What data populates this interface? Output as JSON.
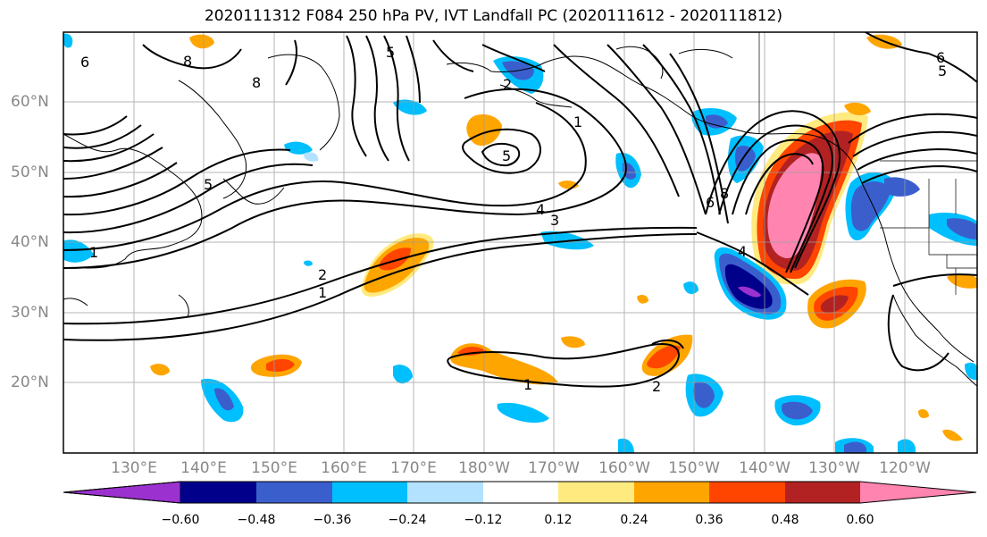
{
  "title": "2020111312 F084 250 hPa PV, IVT Landfall PC (2020111612 - 2020111812)",
  "lat_labels": [
    "60°N",
    "50°N",
    "40°N",
    "30°N",
    "20°N"
  ],
  "lon_labels": [
    "130°E",
    "140°E",
    "150°E",
    "160°E",
    "170°E",
    "180°W",
    "170°W",
    "160°W",
    "150°W",
    "140°W",
    "130°W",
    "120°W"
  ],
  "colorbar": {
    "ticks": [
      "−0.60",
      "−0.48",
      "−0.36",
      "−0.24",
      "−0.12",
      "0.12",
      "0.24",
      "0.36",
      "0.48",
      "0.60"
    ],
    "colors": [
      "#9b32d0",
      "#00008b",
      "#3a5fcd",
      "#00bfff",
      "#b2e2ff",
      "#ffffff",
      "#ffea80",
      "#ffa500",
      "#ff4500",
      "#b22222",
      "#ff85b0"
    ]
  },
  "pv_contour_labels": [
    "1",
    "2",
    "3",
    "4",
    "5",
    "6",
    "8"
  ],
  "colors": {
    "grid": "#9e9e9e",
    "coast": "#000000",
    "pv": "#000000"
  }
}
